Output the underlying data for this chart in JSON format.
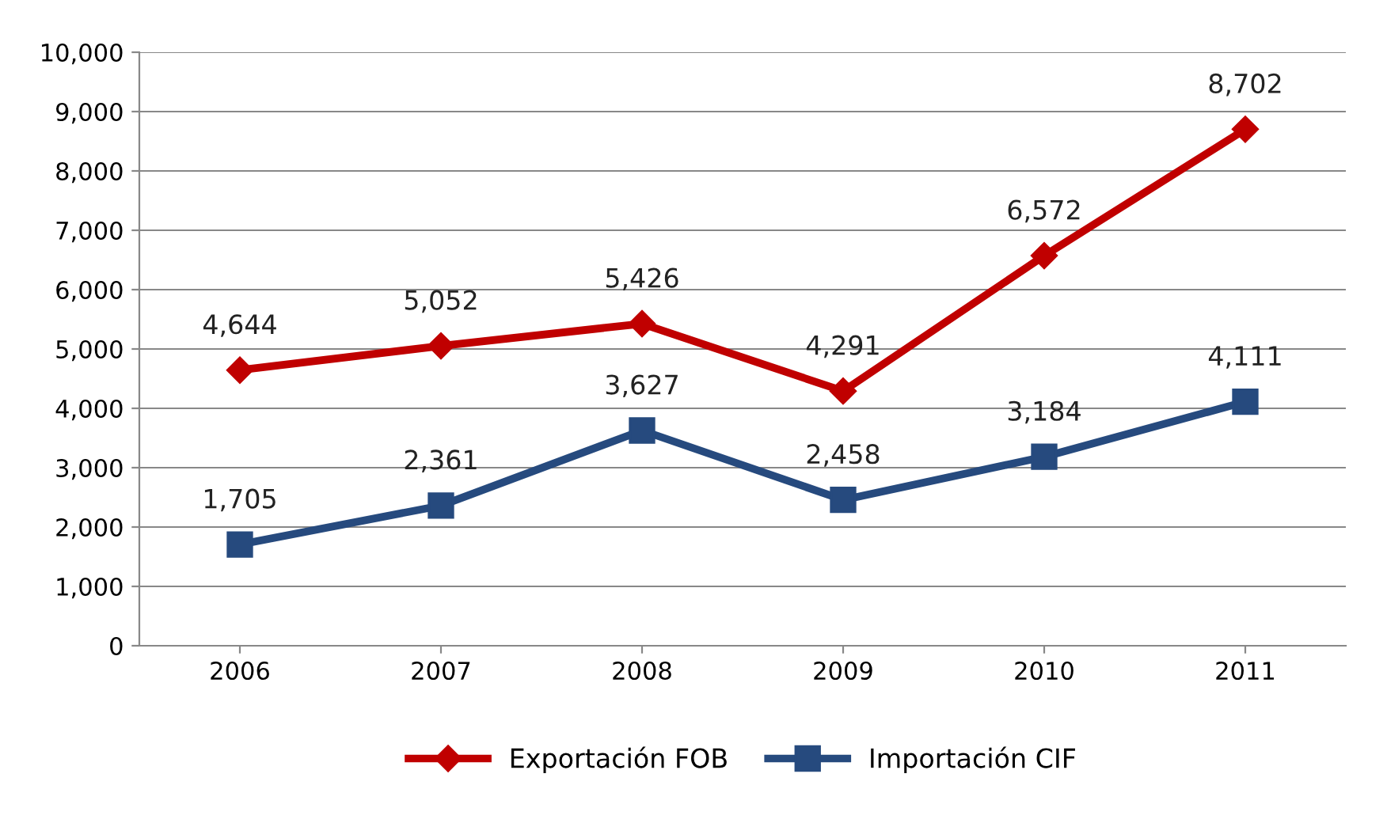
{
  "chart_data": {
    "type": "line",
    "categories": [
      "2006",
      "2007",
      "2008",
      "2009",
      "2010",
      "2011"
    ],
    "series": [
      {
        "name": "Exportación FOB",
        "color": "#c00000",
        "marker": "diamond",
        "values": [
          4644,
          5052,
          5426,
          4291,
          6572,
          8702
        ],
        "value_labels": [
          "4,644",
          "5,052",
          "5,426",
          "4,291",
          "6,572",
          "8,702"
        ]
      },
      {
        "name": "Importación CIF",
        "color": "#264a7e",
        "marker": "square",
        "values": [
          1705,
          2361,
          3627,
          2458,
          3184,
          4111
        ],
        "value_labels": [
          "1,705",
          "2,361",
          "3,627",
          "2,458",
          "3,184",
          "4,111"
        ]
      }
    ],
    "ylim": [
      0,
      10000
    ],
    "yticks": [
      {
        "value": 0,
        "label": "0"
      },
      {
        "value": 1000,
        "label": "1,000"
      },
      {
        "value": 2000,
        "label": "2,000"
      },
      {
        "value": 3000,
        "label": "3,000"
      },
      {
        "value": 4000,
        "label": "4,000"
      },
      {
        "value": 5000,
        "label": "5,000"
      },
      {
        "value": 6000,
        "label": "6,000"
      },
      {
        "value": 7000,
        "label": "7,000"
      },
      {
        "value": 8000,
        "label": "8,000"
      },
      {
        "value": 9000,
        "label": "9,000"
      },
      {
        "value": 10000,
        "label": "10,000"
      }
    ],
    "grid": "y",
    "legend": "bottom",
    "line_style": "solid"
  }
}
